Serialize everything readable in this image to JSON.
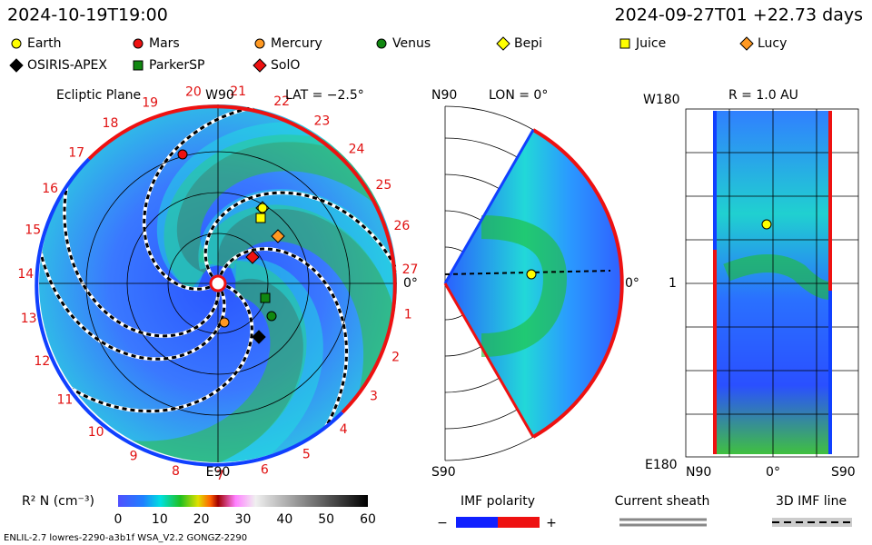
{
  "header": {
    "left": "2024-10-19T19:00",
    "right": "2024-09-27T01 +22.73 days"
  },
  "legend": [
    {
      "label": "Earth",
      "shape": "circle",
      "color": "#ffff00"
    },
    {
      "label": "Mars",
      "shape": "circle",
      "color": "#ee1111"
    },
    {
      "label": "Mercury",
      "shape": "circle",
      "color": "#ff9922"
    },
    {
      "label": "Venus",
      "shape": "circle",
      "color": "#118811"
    },
    {
      "label": "Bepi",
      "shape": "diamond",
      "color": "#ffff00"
    },
    {
      "label": "Juice",
      "shape": "square",
      "color": "#ffff00"
    },
    {
      "label": "Lucy",
      "shape": "diamond",
      "color": "#ff9922"
    },
    {
      "label": "OSIRIS-APEX",
      "shape": "diamond",
      "color": "#000000"
    },
    {
      "label": "ParkerSP",
      "shape": "square",
      "color": "#118811"
    },
    {
      "label": "SolO",
      "shape": "diamond",
      "color": "#ee1111"
    }
  ],
  "ecliptic": {
    "title": "Ecliptic Plane",
    "top": "W90",
    "lat": "LAT = −2.5°",
    "right": "0°",
    "bottom": "E90",
    "sector_labels": [
      "1",
      "2",
      "3",
      "4",
      "5",
      "6",
      "7",
      "8",
      "9",
      "10",
      "11",
      "12",
      "13",
      "14",
      "15",
      "16",
      "17",
      "18",
      "19",
      "20",
      "21",
      "22",
      "23",
      "24",
      "25",
      "26",
      "27"
    ]
  },
  "meridional": {
    "top": "N90",
    "lon": "LON = 0°",
    "right": "0°",
    "bottom": "S90"
  },
  "radial": {
    "top_left": "W180",
    "title": "R = 1.0 AU",
    "mid_left": "1",
    "bottom_left": "E180",
    "bottom": [
      "N90",
      "0°",
      "S90"
    ]
  },
  "colorbar": {
    "label": "R² N (cm⁻³)",
    "ticks": [
      "0",
      "10",
      "20",
      "30",
      "40",
      "50",
      "60"
    ]
  },
  "imf": {
    "title": "IMF polarity",
    "minus": "−",
    "plus": "+"
  },
  "sheath": "Current sheath",
  "imf_line": "3D IMF line",
  "footer": "ENLIL-2.7 lowres-2290-a3b1f WSA_V2.2 GONGZ-2290"
}
